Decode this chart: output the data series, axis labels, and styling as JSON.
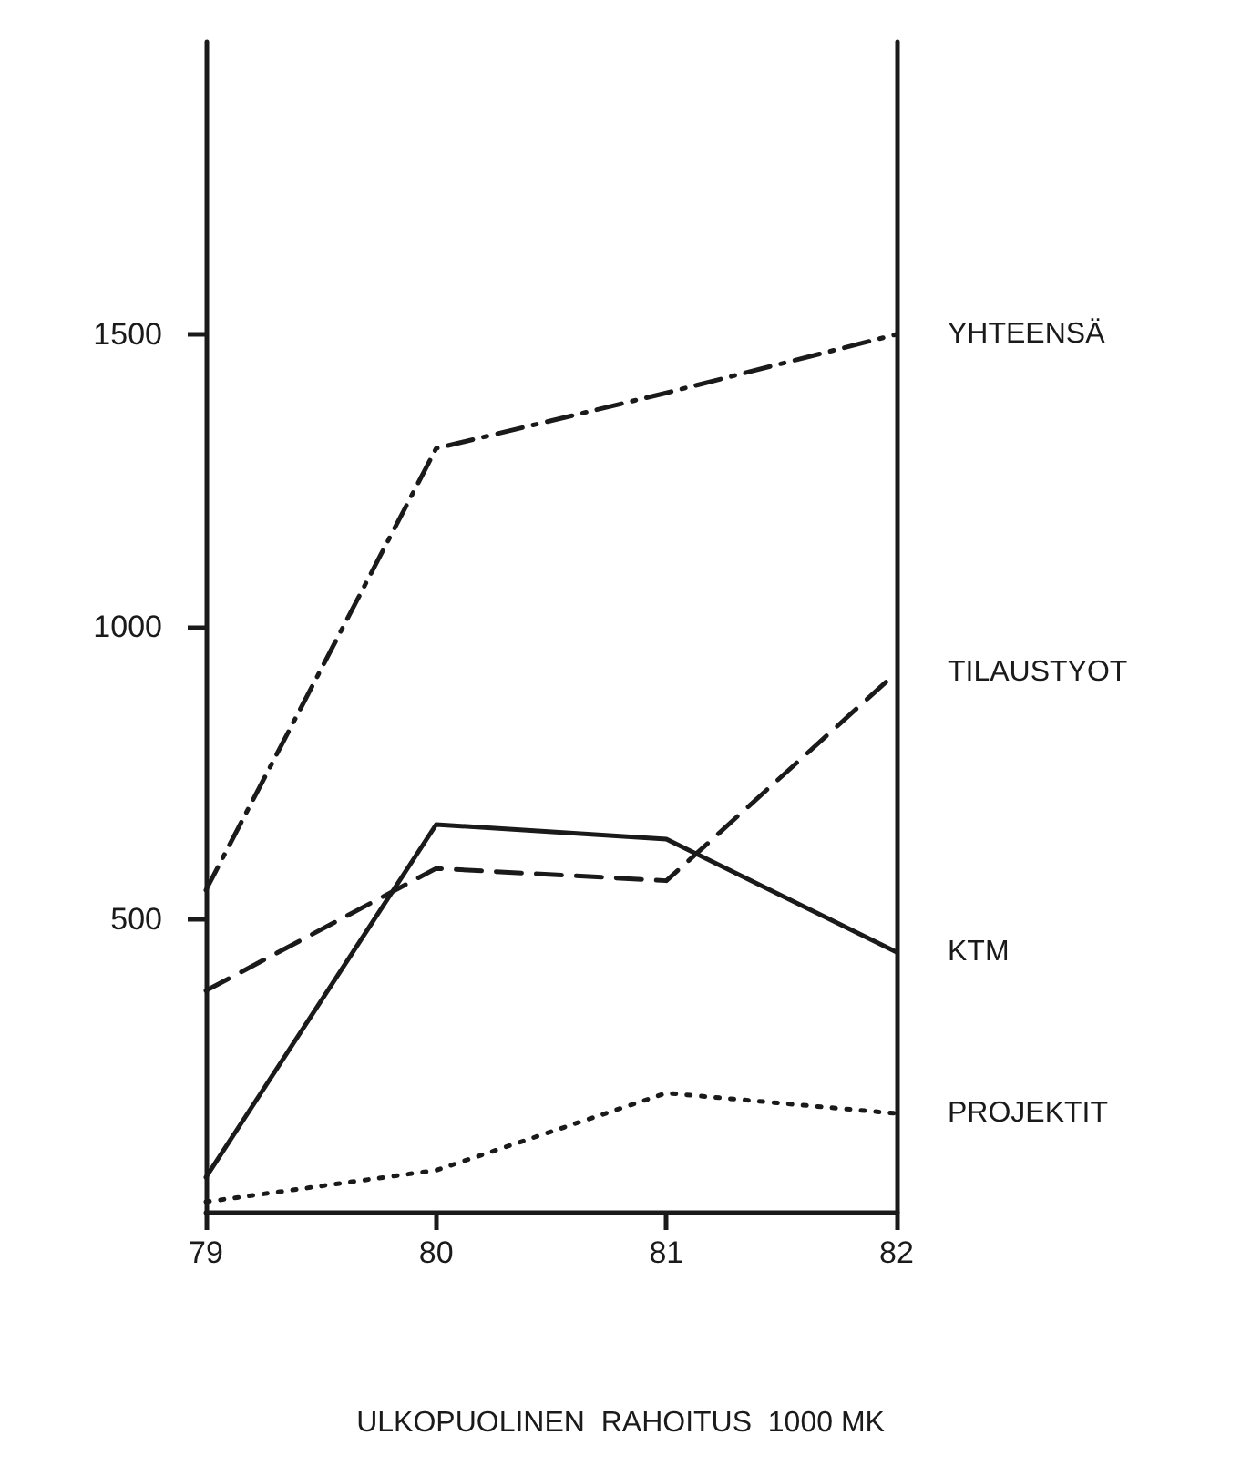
{
  "chart_data": {
    "type": "line",
    "title": "ULKOPUOLINEN  RAHOITUS  1000 MK",
    "x": [
      79,
      80,
      81,
      82
    ],
    "xlim": [
      79,
      82
    ],
    "xticks": [
      79,
      80,
      81,
      82
    ],
    "ylim": [
      0,
      2000
    ],
    "yticks": [
      500,
      1000,
      1500
    ],
    "grid": false,
    "legend": false,
    "marker": "none",
    "series": [
      {
        "name": "YHTEENSÄ",
        "color": "#1a1a1a",
        "line_style": "dashdot",
        "values": [
          550,
          1305,
          1400,
          1500
        ]
      },
      {
        "name": "TILAUSTYOT",
        "color": "#1a1a1a",
        "line_style": "dashed",
        "values": [
          378,
          587,
          566,
          922
        ]
      },
      {
        "name": "KTM",
        "color": "#1a1a1a",
        "line_style": "solid",
        "values": [
          59,
          662,
          637,
          444
        ]
      },
      {
        "name": "PROJEKTIT",
        "color": "#1a1a1a",
        "line_style": "dotted",
        "values": [
          17,
          71,
          203,
          168
        ]
      }
    ]
  }
}
